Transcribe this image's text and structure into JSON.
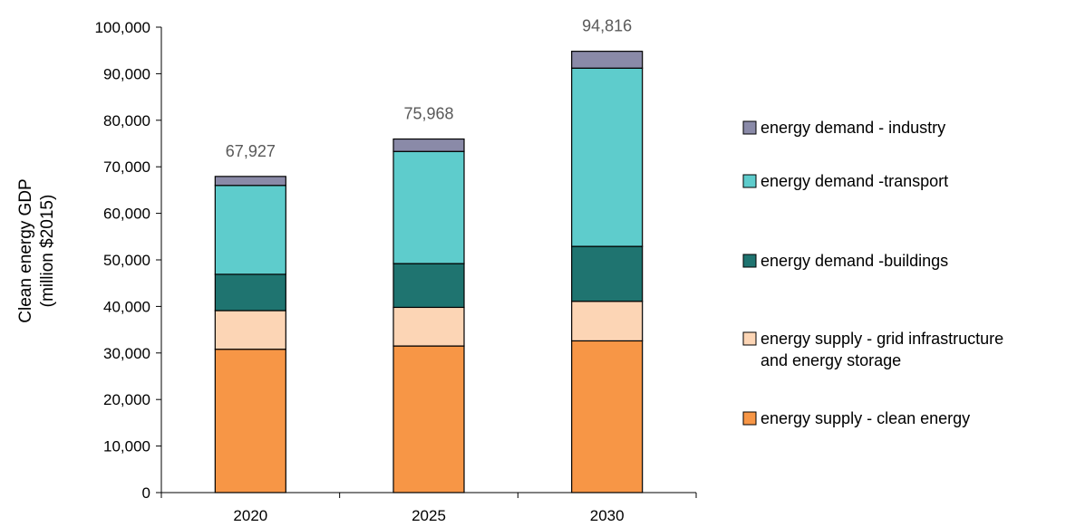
{
  "chart_data": {
    "type": "bar",
    "stacked": true,
    "title": "",
    "ylabel_lines": [
      "Clean energy GDP",
      "(million $2015)"
    ],
    "xlabel": "",
    "ylim": [
      0,
      100000
    ],
    "yticks": [
      0,
      10000,
      20000,
      30000,
      40000,
      50000,
      60000,
      70000,
      80000,
      90000,
      100000
    ],
    "ytick_labels": [
      "0",
      "10,000",
      "20,000",
      "30,000",
      "40,000",
      "50,000",
      "60,000",
      "70,000",
      "80,000",
      "90,000",
      "100,000"
    ],
    "categories": [
      "2020",
      "2025",
      "2030"
    ],
    "totals": [
      67927,
      75968,
      94816
    ],
    "total_labels": [
      "67,927",
      "75,968",
      "94,816"
    ],
    "grid": false,
    "legend_position": "right",
    "series": [
      {
        "name": "energy supply - clean energy",
        "color": "#F79646",
        "values": [
          30800,
          31500,
          32600
        ]
      },
      {
        "name": "energy supply - grid infrastructure and energy storage",
        "name_lines": [
          "energy supply - grid infrastructure",
          "and energy storage"
        ],
        "color": "#FCD5B5",
        "values": [
          8300,
          8300,
          8500
        ]
      },
      {
        "name": "energy demand -buildings",
        "color": "#1F7470",
        "values": [
          7800,
          9400,
          11800
        ]
      },
      {
        "name": "energy demand -transport",
        "color": "#5ECCCC",
        "values": [
          19100,
          24100,
          38300
        ]
      },
      {
        "name": "energy demand - industry",
        "color": "#8A8AA8",
        "values": [
          1927,
          2668,
          3616
        ]
      }
    ],
    "legend_order": [
      4,
      3,
      2,
      1,
      0
    ]
  }
}
